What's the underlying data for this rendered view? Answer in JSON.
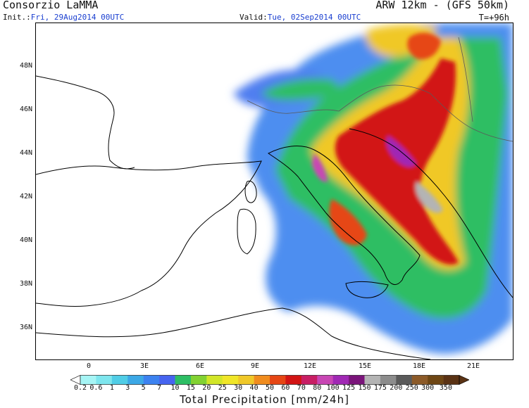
{
  "header": {
    "organization": "Consorzio LaMMA",
    "model": "ARW 12km - (GFS 50km)",
    "init_label": "Init.:",
    "init_value": "Fri, 29Aug2014 00UTC",
    "valid_label": "Valid:",
    "valid_value": "Tue, 02Sep2014 00UTC",
    "lead_time": "T=+96h"
  },
  "axes": {
    "latitudes": [
      "48N",
      "46N",
      "44N",
      "42N",
      "40N",
      "38N",
      "36N"
    ],
    "longitudes": [
      "0",
      "3E",
      "6E",
      "9E",
      "12E",
      "15E",
      "18E",
      "21E"
    ]
  },
  "colorbar": {
    "title": "Total Precipitation [mm/24h]",
    "values": [
      "0.2",
      "0.6",
      "1",
      "3",
      "5",
      "7",
      "10",
      "15",
      "20",
      "25",
      "30",
      "40",
      "50",
      "60",
      "70",
      "80",
      "100",
      "125",
      "150",
      "175",
      "200",
      "250",
      "300",
      "350"
    ],
    "colors": [
      "#a6f5f5",
      "#7ee6ee",
      "#50cde6",
      "#3ca8e6",
      "#3c82f0",
      "#4664f0",
      "#2dbe64",
      "#82d232",
      "#d2e628",
      "#f0e628",
      "#f0c828",
      "#f08c1e",
      "#e64614",
      "#d21414",
      "#c81e64",
      "#c846b4",
      "#a028b4",
      "#7a147a",
      "#b4b4b4",
      "#8c8c8c",
      "#5a5a5a",
      "#8c5a28",
      "#6e4614",
      "#5a3214"
    ],
    "colors_meaning": "precipitation classes from light cyan (low) to dark brown (high)"
  },
  "overlay": {
    "land_outline_color": "#000000",
    "border_color": "#5a5a5a"
  }
}
